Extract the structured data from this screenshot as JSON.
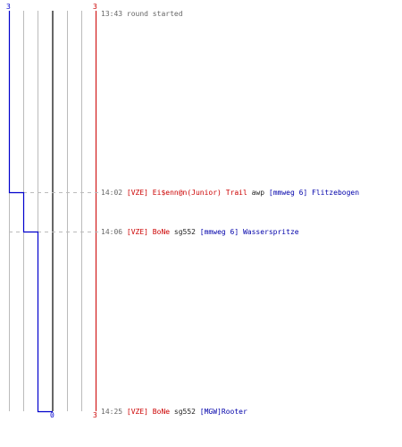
{
  "scores": {
    "blue_top": "3",
    "red_top": "3",
    "blue_bottom": "0",
    "red_bottom": "3"
  },
  "colors": {
    "blue": "#0000cc",
    "red": "#cc0000",
    "grid": "#bbbbbb",
    "center": "#666666",
    "timestamp": "#666666"
  },
  "events": [
    {
      "time": "13:43",
      "parts": [
        {
          "text": " round started",
          "color": "ts"
        }
      ]
    },
    {
      "time": "14:02",
      "parts": [
        {
          "text": " [VZE] Ei$enn@n(Junior) Trail",
          "color": "red"
        },
        {
          "text": " awp ",
          "color": "black"
        },
        {
          "text": "[mmweg 6] Flitzebogen",
          "color": "blue"
        }
      ]
    },
    {
      "time": "14:06",
      "parts": [
        {
          "text": " [VZE] BoNe",
          "color": "red"
        },
        {
          "text": " sg552 ",
          "color": "black"
        },
        {
          "text": "[mmweg 6] Wasserspritze",
          "color": "blue"
        }
      ]
    },
    {
      "time": "14:25",
      "parts": [
        {
          "text": " [VZE] BoNe",
          "color": "red"
        },
        {
          "text": " sg552 ",
          "color": "black"
        },
        {
          "text": "[MGW]Rooter",
          "color": "blue"
        }
      ]
    }
  ]
}
